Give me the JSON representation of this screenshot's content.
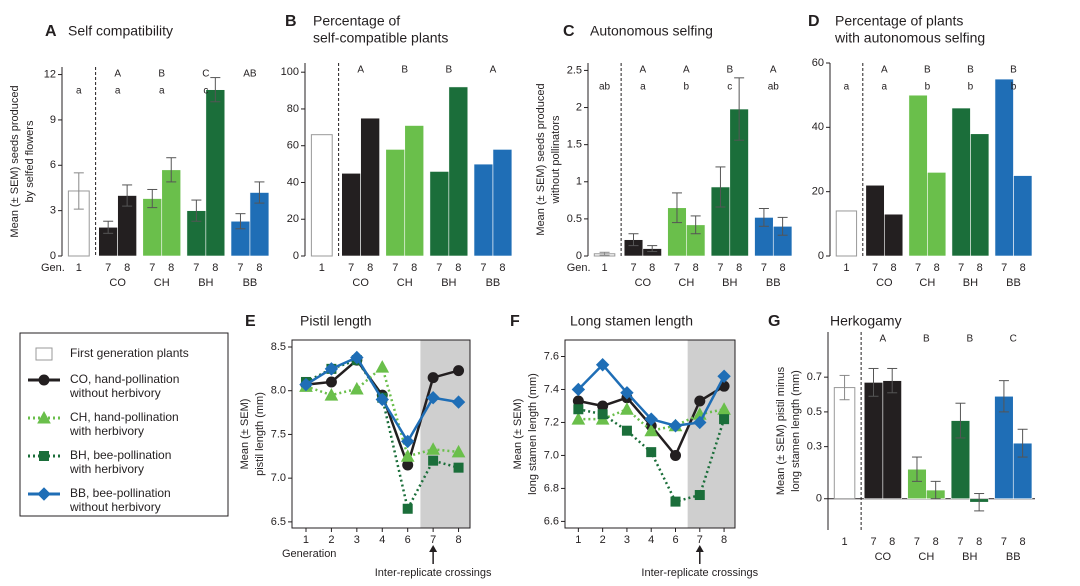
{
  "chart_data": [
    {
      "type": "bar",
      "panel": "A",
      "title": [
        "Self compatibility"
      ],
      "ylabel": [
        "Mean (± SEM) seeds produced",
        "by selfed flowers"
      ],
      "xlabel": "Gen.",
      "ylim": [
        0,
        12.5
      ],
      "yticks": [
        0,
        3,
        6,
        9,
        12
      ],
      "first": {
        "category": "1",
        "value": 4.3,
        "error": 1.2,
        "letter": "a"
      },
      "groups": [
        {
          "name": "CO",
          "color": "#231f20",
          "categories": [
            "7",
            "8"
          ],
          "values": [
            1.9,
            4.0
          ],
          "errors": [
            0.4,
            0.7
          ],
          "letter": "A",
          "sublabel": "a"
        },
        {
          "name": "CH",
          "color": "#6abf4b",
          "categories": [
            "7",
            "8"
          ],
          "values": [
            3.8,
            5.7
          ],
          "errors": [
            0.6,
            0.8
          ],
          "letter": "B",
          "sublabel": "a"
        },
        {
          "name": "BH",
          "color": "#1b6e3a",
          "categories": [
            "7",
            "8"
          ],
          "values": [
            3.0,
            11.0
          ],
          "errors": [
            0.7,
            0.8
          ],
          "letter": "C",
          "sublabel": "c"
        },
        {
          "name": "BB",
          "color": "#1f6eb6",
          "categories": [
            "7",
            "8"
          ],
          "values": [
            2.3,
            4.2
          ],
          "errors": [
            0.5,
            0.7
          ],
          "letter": "AB"
        }
      ]
    },
    {
      "type": "bar",
      "panel": "B",
      "title": [
        "Percentage of",
        "self-compatible plants"
      ],
      "ylim": [
        0,
        105
      ],
      "yticks": [
        0,
        20,
        40,
        60,
        80,
        100
      ],
      "first": {
        "category": "1",
        "value": 66
      },
      "groups": [
        {
          "name": "CO",
          "color": "#231f20",
          "categories": [
            "7",
            "8"
          ],
          "values": [
            45,
            75
          ],
          "letter": "A"
        },
        {
          "name": "CH",
          "color": "#6abf4b",
          "categories": [
            "7",
            "8"
          ],
          "values": [
            58,
            71
          ],
          "letter": "B"
        },
        {
          "name": "BH",
          "color": "#1b6e3a",
          "categories": [
            "7",
            "8"
          ],
          "values": [
            46,
            92
          ],
          "letter": "B"
        },
        {
          "name": "BB",
          "color": "#1f6eb6",
          "categories": [
            "7",
            "8"
          ],
          "values": [
            50,
            58
          ],
          "letter": "A"
        }
      ]
    },
    {
      "type": "bar",
      "panel": "C",
      "title": [
        "Autonomous selfing"
      ],
      "ylabel": [
        "Mean (± SEM) seeds produced",
        "without pollinators"
      ],
      "xlabel": "Gen.",
      "ylim": [
        0,
        2.6
      ],
      "yticks": [
        0,
        0.5,
        1,
        1.5,
        2,
        2.5
      ],
      "first": {
        "category": "1",
        "value": 0.03,
        "error": 0.02,
        "letter": "ab"
      },
      "groups": [
        {
          "name": "CO",
          "color": "#231f20",
          "categories": [
            "7",
            "8"
          ],
          "values": [
            0.22,
            0.1
          ],
          "errors": [
            0.08,
            0.04
          ],
          "letter": "A",
          "sublabel": "a"
        },
        {
          "name": "CH",
          "color": "#6abf4b",
          "categories": [
            "7",
            "8"
          ],
          "values": [
            0.65,
            0.42
          ],
          "errors": [
            0.2,
            0.12
          ],
          "letter": "A",
          "sublabel": "b"
        },
        {
          "name": "BH",
          "color": "#1b6e3a",
          "categories": [
            "7",
            "8"
          ],
          "values": [
            0.93,
            1.98
          ],
          "errors": [
            0.27,
            0.42
          ],
          "letter": "B",
          "sublabel": "c"
        },
        {
          "name": "BB",
          "color": "#1f6eb6",
          "categories": [
            "7",
            "8"
          ],
          "values": [
            0.52,
            0.4
          ],
          "errors": [
            0.12,
            0.12
          ],
          "letter": "A",
          "sublabel": "ab"
        }
      ]
    },
    {
      "type": "bar",
      "panel": "D",
      "title": [
        "Percentage of plants",
        "with autonomous selfing"
      ],
      "ylim": [
        0,
        60
      ],
      "yticks": [
        0,
        20,
        40,
        60
      ],
      "first": {
        "category": "1",
        "value": 14,
        "letter": "a"
      },
      "groups": [
        {
          "name": "CO",
          "color": "#231f20",
          "categories": [
            "7",
            "8"
          ],
          "values": [
            22,
            13
          ],
          "letter": "A",
          "sublabel": "a"
        },
        {
          "name": "CH",
          "color": "#6abf4b",
          "categories": [
            "7",
            "8"
          ],
          "values": [
            50,
            26
          ],
          "letter": "B",
          "sublabel": "b"
        },
        {
          "name": "BH",
          "color": "#1b6e3a",
          "categories": [
            "7",
            "8"
          ],
          "values": [
            46,
            38
          ],
          "letter": "B",
          "sublabel": "b"
        },
        {
          "name": "BB",
          "color": "#1f6eb6",
          "categories": [
            "7",
            "8"
          ],
          "values": [
            55,
            25
          ],
          "letter": "B",
          "sublabel": "b"
        }
      ]
    },
    {
      "type": "line",
      "panel": "E",
      "title": [
        "Pistil length"
      ],
      "ylabel": [
        "Mean (± SEM)",
        "pistil length (mm)"
      ],
      "xlabel": "Generation",
      "categories": [
        "1",
        "2",
        "3",
        "4",
        "6",
        "7",
        "8"
      ],
      "ylim": [
        6.43,
        8.58
      ],
      "yticks": [
        6.5,
        {
          "value": 7,
          "label": "7.0"
        },
        7.5,
        {
          "value": 8,
          "label": "8.0"
        },
        8.5
      ],
      "annotation": {
        "text": "Inter-replicate crossings",
        "x": "7"
      },
      "series": [
        {
          "name": "CO",
          "color": "#231f20",
          "marker": "circle",
          "dashed": false,
          "values": [
            8.07,
            8.1,
            8.35,
            7.95,
            7.15,
            8.15,
            8.23
          ]
        },
        {
          "name": "CH",
          "color": "#6abf4b",
          "marker": "triangle",
          "dashed": true,
          "values": [
            8.05,
            7.95,
            8.02,
            8.27,
            7.25,
            7.33,
            7.3
          ]
        },
        {
          "name": "BH",
          "color": "#1b6e3a",
          "marker": "square",
          "dashed": true,
          "values": [
            8.1,
            8.25,
            8.35,
            7.92,
            6.65,
            7.2,
            7.12
          ]
        },
        {
          "name": "BB",
          "color": "#1f6eb6",
          "marker": "diamond",
          "dashed": false,
          "values": [
            8.07,
            8.25,
            8.38,
            7.9,
            7.42,
            7.92,
            7.87
          ]
        }
      ]
    },
    {
      "type": "line",
      "panel": "F",
      "title": [
        "Long stamen length"
      ],
      "ylabel": [
        "Mean (± SEM)",
        "long stamen length (mm)"
      ],
      "categories": [
        "1",
        "2",
        "3",
        "4",
        "6",
        "7",
        "8"
      ],
      "ylim": [
        6.56,
        7.7
      ],
      "yticks": [
        6.6,
        6.8,
        {
          "value": 7,
          "label": "7.0"
        },
        7.2,
        7.4,
        7.6
      ],
      "annotation": {
        "text": "Inter-replicate crossings",
        "x": "7"
      },
      "series": [
        {
          "name": "CO",
          "color": "#231f20",
          "marker": "circle",
          "dashed": false,
          "values": [
            7.33,
            7.3,
            7.35,
            7.18,
            7.0,
            7.33,
            7.42
          ]
        },
        {
          "name": "CH",
          "color": "#6abf4b",
          "marker": "triangle",
          "dashed": true,
          "values": [
            7.22,
            7.22,
            7.28,
            7.15,
            7.18,
            7.25,
            7.28
          ]
        },
        {
          "name": "BH",
          "color": "#1b6e3a",
          "marker": "square",
          "dashed": true,
          "values": [
            7.28,
            7.25,
            7.15,
            7.02,
            6.72,
            6.76,
            7.22
          ]
        },
        {
          "name": "BB",
          "color": "#1f6eb6",
          "marker": "diamond",
          "dashed": false,
          "values": [
            7.4,
            7.55,
            7.38,
            7.22,
            7.18,
            7.2,
            7.48
          ]
        }
      ]
    },
    {
      "type": "bar",
      "panel": "G",
      "title": [
        "Herkogamy"
      ],
      "ylabel": [
        "Mean (± SEM) pistil minus",
        "long stamen length (mm)"
      ],
      "ylim": [
        -0.18,
        0.96
      ],
      "yticks": [
        0,
        0.3,
        0.5,
        0.7
      ],
      "first": {
        "category": "1",
        "value": 0.64,
        "error": 0.07
      },
      "groups": [
        {
          "name": "CO",
          "color": "#231f20",
          "categories": [
            "7",
            "8"
          ],
          "values": [
            0.67,
            0.68
          ],
          "errors": [
            0.08,
            0.07
          ],
          "letter": "A"
        },
        {
          "name": "CH",
          "color": "#6abf4b",
          "categories": [
            "7",
            "8"
          ],
          "values": [
            0.17,
            0.05
          ],
          "errors": [
            0.07,
            0.05
          ],
          "letter": "B"
        },
        {
          "name": "BH",
          "color": "#1b6e3a",
          "categories": [
            "7",
            "8"
          ],
          "values": [
            0.45,
            -0.02
          ],
          "errors": [
            0.1,
            0.05
          ],
          "letter": "B"
        },
        {
          "name": "BB",
          "color": "#1f6eb6",
          "categories": [
            "7",
            "8"
          ],
          "values": [
            0.59,
            0.32
          ],
          "errors": [
            0.09,
            0.08
          ],
          "letter": "C"
        }
      ]
    }
  ],
  "legend": [
    {
      "label": [
        "First generation plants"
      ],
      "marker": "box"
    },
    {
      "label": [
        "CO, hand-pollination",
        "without herbivory"
      ],
      "color": "#231f20",
      "marker": "circle",
      "dashed": false
    },
    {
      "label": [
        "CH, hand-pollination",
        "with herbivory"
      ],
      "color": "#6abf4b",
      "marker": "triangle",
      "dashed": true
    },
    {
      "label": [
        "BH, bee-pollination",
        "with herbivory"
      ],
      "color": "#1b6e3a",
      "marker": "square",
      "dashed": true
    },
    {
      "label": [
        "BB, bee-pollination",
        "without herbivory"
      ],
      "color": "#1f6eb6",
      "marker": "diamond",
      "dashed": false
    }
  ]
}
